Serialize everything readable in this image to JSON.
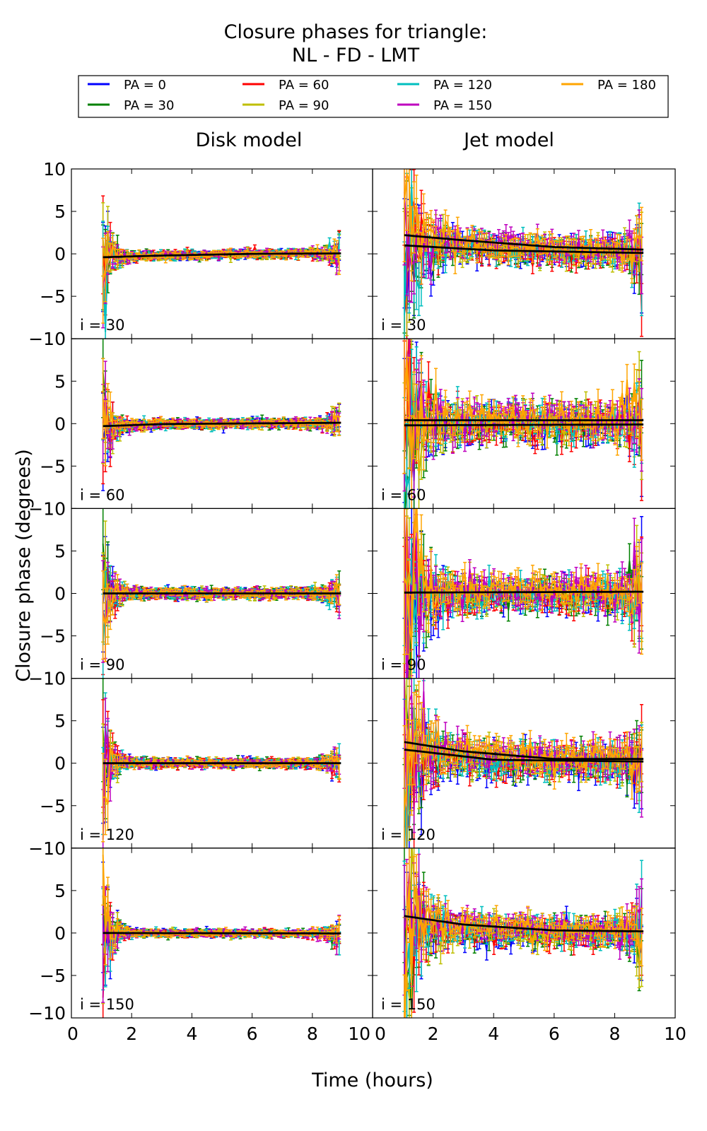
{
  "chart_data": {
    "type": "line",
    "title": "Closure phases for triangle:",
    "subtitle": "NL - FD - LMT",
    "xlabel": "Time (hours)",
    "ylabel": "Closure phase (degrees)",
    "xlim": [
      0,
      10
    ],
    "ylim": [
      -10,
      10
    ],
    "xticks": [
      0,
      2,
      4,
      6,
      8,
      10
    ],
    "yticks": [
      -10,
      -5,
      0,
      5,
      10
    ],
    "grid": false,
    "legend_position": "top",
    "column_titles": [
      "Disk model",
      "Jet model"
    ],
    "time_range": [
      1.05,
      8.95
    ],
    "series": [
      {
        "name": "PA = 0",
        "color": "#0000ff",
        "jet_offset": -0.9
      },
      {
        "name": "PA = 30",
        "color": "#008000",
        "jet_offset": -0.4
      },
      {
        "name": "PA = 60",
        "color": "#ff0000",
        "jet_offset": -0.6
      },
      {
        "name": "PA = 90",
        "color": "#bfbf00",
        "jet_offset": -0.3
      },
      {
        "name": "PA = 120",
        "color": "#00bfbf",
        "jet_offset": 0.0
      },
      {
        "name": "PA = 150",
        "color": "#bf00bf",
        "jet_offset": 0.6
      },
      {
        "name": "PA = 180",
        "color": "#ffa500",
        "jet_offset": 0.5
      }
    ],
    "panels": [
      {
        "model": "Disk",
        "label": "i = 30",
        "scatter_deg": {
          "early": 5,
          "mid": 0.3,
          "late": 1.3
        },
        "fits": [
          [
            [
              1.05,
              -0.4
            ],
            [
              3,
              -0.2
            ],
            [
              6,
              0
            ],
            [
              8.95,
              0.05
            ]
          ]
        ]
      },
      {
        "model": "Jet",
        "label": "i = 30",
        "scatter_deg": {
          "early": 7,
          "mid": 1.0,
          "late": 3
        },
        "fits": [
          [
            [
              1.05,
              2.2
            ],
            [
              3,
              1.6
            ],
            [
              6,
              0.8
            ],
            [
              8.95,
              0.5
            ]
          ],
          [
            [
              1.05,
              1.0
            ],
            [
              4,
              0.4
            ],
            [
              8.95,
              0.1
            ]
          ]
        ]
      },
      {
        "model": "Disk",
        "label": "i = 60",
        "scatter_deg": {
          "early": 5,
          "mid": 0.3,
          "late": 1.3
        },
        "fits": [
          [
            [
              1.05,
              -0.3
            ],
            [
              3,
              -0.05
            ],
            [
              8.95,
              0.1
            ]
          ]
        ]
      },
      {
        "model": "Jet",
        "label": "i = 60",
        "scatter_deg": {
          "early": 8,
          "mid": 1.3,
          "late": 4
        },
        "fits": [
          [
            [
              1.05,
              0.4
            ],
            [
              8.95,
              0.4
            ]
          ],
          [
            [
              1.05,
              -0.2
            ],
            [
              8.95,
              -0.1
            ]
          ]
        ]
      },
      {
        "model": "Disk",
        "label": "i = 90",
        "scatter_deg": {
          "early": 6,
          "mid": 0.35,
          "late": 1.3
        },
        "fits": [
          [
            [
              1.05,
              0
            ],
            [
              8.95,
              0
            ]
          ]
        ]
      },
      {
        "model": "Jet",
        "label": "i = 90",
        "scatter_deg": {
          "early": 9,
          "mid": 1.2,
          "late": 5
        },
        "fits": [
          [
            [
              1.05,
              0.1
            ],
            [
              8.95,
              0.2
            ]
          ]
        ]
      },
      {
        "model": "Disk",
        "label": "i = 120",
        "scatter_deg": {
          "early": 6,
          "mid": 0.3,
          "late": 1.3
        },
        "fits": [
          [
            [
              1.05,
              0
            ],
            [
              8.95,
              0
            ]
          ]
        ]
      },
      {
        "model": "Jet",
        "label": "i = 120",
        "scatter_deg": {
          "early": 8,
          "mid": 1.2,
          "late": 3.5
        },
        "fits": [
          [
            [
              1.05,
              2.5
            ],
            [
              3,
              1.4
            ],
            [
              6,
              0.5
            ],
            [
              8.95,
              0.5
            ]
          ],
          [
            [
              1.05,
              1.6
            ],
            [
              4,
              0.4
            ],
            [
              8.95,
              0.2
            ]
          ]
        ]
      },
      {
        "model": "Disk",
        "label": "i = 150",
        "scatter_deg": {
          "early": 6,
          "mid": 0.25,
          "late": 1.3
        },
        "fits": [
          [
            [
              1.05,
              0
            ],
            [
              8.95,
              -0.05
            ]
          ]
        ]
      },
      {
        "model": "Jet",
        "label": "i = 150",
        "scatter_deg": {
          "early": 8,
          "mid": 1.0,
          "late": 3.5
        },
        "fits": [
          [
            [
              1.05,
              2.0
            ],
            [
              3,
              1.0
            ],
            [
              6,
              0.3
            ],
            [
              8.95,
              0.2
            ]
          ]
        ]
      }
    ]
  }
}
